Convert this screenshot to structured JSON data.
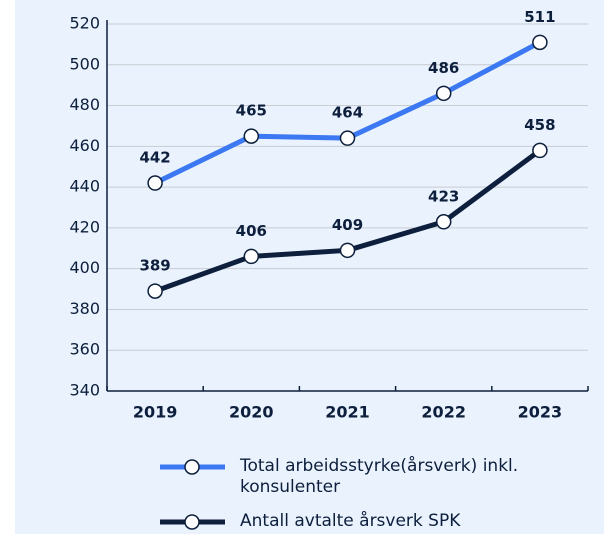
{
  "chart_data": {
    "type": "line",
    "categories": [
      "2019",
      "2020",
      "2021",
      "2022",
      "2023"
    ],
    "series": [
      {
        "name": "Total arbeidsstyrke(årsverk) inkl. konsulenter",
        "color": "#3b78f2",
        "values": [
          442,
          465,
          464,
          486,
          511
        ]
      },
      {
        "name": "Antall avtalte årsverk SPK",
        "color": "#0d1f3c",
        "values": [
          389,
          406,
          409,
          423,
          458
        ]
      }
    ],
    "ylim": [
      340,
      520
    ],
    "yticks": [
      340,
      360,
      380,
      400,
      420,
      440,
      460,
      480,
      500,
      520
    ],
    "grid": true
  }
}
